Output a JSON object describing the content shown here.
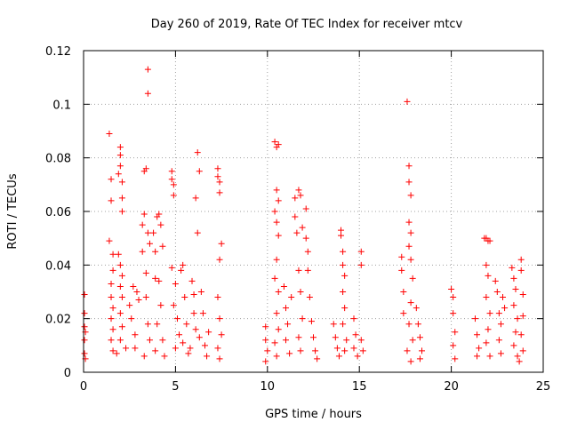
{
  "chart_data": {
    "type": "scatter",
    "title": "Day 260 of 2019, Rate Of TEC Index for receiver mtcv",
    "xlabel": "GPS time / hours",
    "ylabel": "ROTI / TECUs",
    "xlim": [
      0,
      25
    ],
    "ylim": [
      0,
      0.12
    ],
    "x_ticks": [
      0,
      5,
      10,
      15,
      20,
      25
    ],
    "x_tick_labels": [
      "0",
      "5",
      "10",
      "15",
      "20",
      "25"
    ],
    "y_ticks": [
      0,
      0.02,
      0.04,
      0.06,
      0.08,
      0.1,
      0.12
    ],
    "y_tick_labels": [
      "0",
      "0.02",
      "0.04",
      "0.06",
      "0.08",
      "0.1",
      "0.12"
    ],
    "grid": true,
    "legend": "none",
    "marker": "plus",
    "color": "#ff0000",
    "series": [
      {
        "points": [
          [
            0.05,
            0.029
          ],
          [
            0.05,
            0.022
          ],
          [
            0.05,
            0.017
          ],
          [
            0.05,
            0.012
          ],
          [
            0.05,
            0.007
          ],
          [
            0.1,
            0.015
          ],
          [
            0.1,
            0.005
          ],
          [
            1.4,
            0.089
          ],
          [
            1.5,
            0.072
          ],
          [
            1.5,
            0.064
          ],
          [
            1.4,
            0.049
          ],
          [
            1.6,
            0.044
          ],
          [
            1.6,
            0.038
          ],
          [
            1.5,
            0.033
          ],
          [
            1.5,
            0.028
          ],
          [
            1.6,
            0.024
          ],
          [
            1.5,
            0.02
          ],
          [
            1.6,
            0.016
          ],
          [
            1.5,
            0.012
          ],
          [
            1.6,
            0.008
          ],
          [
            2.0,
            0.084
          ],
          [
            2.0,
            0.081
          ],
          [
            2.0,
            0.077
          ],
          [
            1.9,
            0.074
          ],
          [
            2.1,
            0.071
          ],
          [
            2.1,
            0.065
          ],
          [
            2.1,
            0.06
          ],
          [
            1.9,
            0.044
          ],
          [
            2.0,
            0.04
          ],
          [
            2.1,
            0.036
          ],
          [
            2.0,
            0.032
          ],
          [
            2.1,
            0.028
          ],
          [
            2.0,
            0.022
          ],
          [
            2.1,
            0.017
          ],
          [
            2.0,
            0.012
          ],
          [
            1.8,
            0.007
          ],
          [
            2.3,
            0.009
          ],
          [
            2.5,
            0.025
          ],
          [
            2.7,
            0.032
          ],
          [
            2.6,
            0.02
          ],
          [
            2.8,
            0.014
          ],
          [
            2.9,
            0.03
          ],
          [
            3.0,
            0.027
          ],
          [
            2.8,
            0.009
          ],
          [
            3.2,
            0.055
          ],
          [
            3.2,
            0.045
          ],
          [
            3.3,
            0.059
          ],
          [
            3.3,
            0.075
          ],
          [
            3.4,
            0.076
          ],
          [
            3.5,
            0.052
          ],
          [
            3.4,
            0.037
          ],
          [
            3.5,
            0.113
          ],
          [
            3.5,
            0.104
          ],
          [
            3.6,
            0.048
          ],
          [
            3.4,
            0.028
          ],
          [
            3.5,
            0.018
          ],
          [
            3.6,
            0.012
          ],
          [
            3.3,
            0.006
          ],
          [
            3.8,
            0.052
          ],
          [
            3.9,
            0.045
          ],
          [
            3.9,
            0.035
          ],
          [
            4.0,
            0.058
          ],
          [
            4.1,
            0.059
          ],
          [
            4.2,
            0.055
          ],
          [
            4.3,
            0.047
          ],
          [
            4.1,
            0.034
          ],
          [
            4.2,
            0.025
          ],
          [
            4.0,
            0.018
          ],
          [
            4.3,
            0.012
          ],
          [
            3.9,
            0.008
          ],
          [
            4.4,
            0.006
          ],
          [
            4.8,
            0.075
          ],
          [
            4.8,
            0.072
          ],
          [
            4.9,
            0.07
          ],
          [
            4.9,
            0.066
          ],
          [
            4.8,
            0.039
          ],
          [
            5.0,
            0.033
          ],
          [
            4.9,
            0.025
          ],
          [
            5.1,
            0.02
          ],
          [
            5.2,
            0.014
          ],
          [
            5.0,
            0.009
          ],
          [
            5.3,
            0.038
          ],
          [
            5.4,
            0.04
          ],
          [
            5.5,
            0.028
          ],
          [
            5.6,
            0.018
          ],
          [
            5.4,
            0.011
          ],
          [
            5.7,
            0.007
          ],
          [
            5.9,
            0.034
          ],
          [
            6.0,
            0.029
          ],
          [
            6.0,
            0.022
          ],
          [
            6.1,
            0.016
          ],
          [
            5.8,
            0.009
          ],
          [
            6.2,
            0.082
          ],
          [
            6.1,
            0.065
          ],
          [
            6.2,
            0.052
          ],
          [
            6.3,
            0.075
          ],
          [
            6.4,
            0.03
          ],
          [
            6.5,
            0.022
          ],
          [
            6.3,
            0.013
          ],
          [
            6.6,
            0.01
          ],
          [
            6.7,
            0.006
          ],
          [
            6.8,
            0.015
          ],
          [
            7.3,
            0.076
          ],
          [
            7.3,
            0.073
          ],
          [
            7.4,
            0.071
          ],
          [
            7.4,
            0.067
          ],
          [
            7.5,
            0.048
          ],
          [
            7.4,
            0.042
          ],
          [
            7.3,
            0.028
          ],
          [
            7.4,
            0.02
          ],
          [
            7.5,
            0.014
          ],
          [
            7.3,
            0.009
          ],
          [
            7.4,
            0.005
          ],
          [
            9.9,
            0.017
          ],
          [
            9.9,
            0.012
          ],
          [
            10.0,
            0.008
          ],
          [
            9.9,
            0.004
          ],
          [
            10.4,
            0.086
          ],
          [
            10.5,
            0.084
          ],
          [
            10.6,
            0.085
          ],
          [
            10.5,
            0.068
          ],
          [
            10.6,
            0.064
          ],
          [
            10.4,
            0.06
          ],
          [
            10.5,
            0.056
          ],
          [
            10.6,
            0.051
          ],
          [
            10.5,
            0.042
          ],
          [
            10.4,
            0.035
          ],
          [
            10.6,
            0.03
          ],
          [
            10.5,
            0.022
          ],
          [
            10.6,
            0.016
          ],
          [
            10.4,
            0.011
          ],
          [
            10.5,
            0.006
          ],
          [
            10.9,
            0.032
          ],
          [
            11.0,
            0.024
          ],
          [
            11.1,
            0.018
          ],
          [
            11.0,
            0.012
          ],
          [
            11.2,
            0.007
          ],
          [
            11.3,
            0.028
          ],
          [
            11.5,
            0.065
          ],
          [
            11.5,
            0.058
          ],
          [
            11.6,
            0.052
          ],
          [
            11.7,
            0.068
          ],
          [
            11.8,
            0.066
          ],
          [
            11.9,
            0.054
          ],
          [
            11.7,
            0.038
          ],
          [
            11.8,
            0.03
          ],
          [
            11.9,
            0.02
          ],
          [
            11.7,
            0.013
          ],
          [
            11.8,
            0.008
          ],
          [
            12.1,
            0.061
          ],
          [
            12.1,
            0.05
          ],
          [
            12.2,
            0.045
          ],
          [
            12.2,
            0.038
          ],
          [
            12.3,
            0.028
          ],
          [
            12.4,
            0.019
          ],
          [
            12.5,
            0.013
          ],
          [
            12.6,
            0.008
          ],
          [
            12.7,
            0.005
          ],
          [
            13.6,
            0.018
          ],
          [
            13.7,
            0.013
          ],
          [
            13.8,
            0.009
          ],
          [
            13.9,
            0.006
          ],
          [
            14.0,
            0.053
          ],
          [
            14.0,
            0.051
          ],
          [
            14.1,
            0.045
          ],
          [
            14.1,
            0.04
          ],
          [
            14.2,
            0.036
          ],
          [
            14.1,
            0.03
          ],
          [
            14.2,
            0.024
          ],
          [
            14.1,
            0.018
          ],
          [
            14.3,
            0.012
          ],
          [
            14.2,
            0.008
          ],
          [
            14.7,
            0.02
          ],
          [
            14.8,
            0.014
          ],
          [
            14.7,
            0.009
          ],
          [
            14.9,
            0.006
          ],
          [
            15.1,
            0.045
          ],
          [
            15.1,
            0.04
          ],
          [
            15.1,
            0.012
          ],
          [
            15.2,
            0.008
          ],
          [
            17.3,
            0.043
          ],
          [
            17.3,
            0.038
          ],
          [
            17.4,
            0.03
          ],
          [
            17.4,
            0.022
          ],
          [
            17.6,
            0.101
          ],
          [
            17.7,
            0.077
          ],
          [
            17.7,
            0.071
          ],
          [
            17.8,
            0.066
          ],
          [
            17.7,
            0.056
          ],
          [
            17.8,
            0.052
          ],
          [
            17.7,
            0.047
          ],
          [
            17.8,
            0.042
          ],
          [
            17.9,
            0.035
          ],
          [
            17.8,
            0.026
          ],
          [
            17.7,
            0.018
          ],
          [
            17.9,
            0.012
          ],
          [
            17.6,
            0.008
          ],
          [
            17.8,
            0.004
          ],
          [
            18.1,
            0.024
          ],
          [
            18.2,
            0.018
          ],
          [
            18.3,
            0.013
          ],
          [
            18.4,
            0.008
          ],
          [
            18.3,
            0.005
          ],
          [
            20.0,
            0.031
          ],
          [
            20.1,
            0.028
          ],
          [
            20.1,
            0.022
          ],
          [
            20.2,
            0.015
          ],
          [
            20.1,
            0.01
          ],
          [
            20.2,
            0.005
          ],
          [
            21.3,
            0.02
          ],
          [
            21.4,
            0.014
          ],
          [
            21.5,
            0.009
          ],
          [
            21.4,
            0.006
          ],
          [
            21.8,
            0.05
          ],
          [
            21.9,
            0.05
          ],
          [
            22.0,
            0.049
          ],
          [
            22.1,
            0.049
          ],
          [
            21.9,
            0.04
          ],
          [
            22.0,
            0.036
          ],
          [
            21.9,
            0.028
          ],
          [
            22.1,
            0.022
          ],
          [
            22.0,
            0.016
          ],
          [
            21.9,
            0.011
          ],
          [
            22.1,
            0.006
          ],
          [
            22.4,
            0.034
          ],
          [
            22.5,
            0.03
          ],
          [
            22.6,
            0.022
          ],
          [
            22.7,
            0.018
          ],
          [
            22.6,
            0.012
          ],
          [
            22.7,
            0.007
          ],
          [
            22.8,
            0.028
          ],
          [
            22.9,
            0.024
          ],
          [
            23.3,
            0.039
          ],
          [
            23.4,
            0.035
          ],
          [
            23.5,
            0.031
          ],
          [
            23.4,
            0.025
          ],
          [
            23.6,
            0.02
          ],
          [
            23.5,
            0.015
          ],
          [
            23.4,
            0.01
          ],
          [
            23.6,
            0.006
          ],
          [
            23.8,
            0.042
          ],
          [
            23.8,
            0.038
          ],
          [
            23.9,
            0.029
          ],
          [
            23.9,
            0.021
          ],
          [
            23.8,
            0.014
          ],
          [
            23.9,
            0.008
          ],
          [
            23.7,
            0.004
          ]
        ]
      }
    ]
  }
}
